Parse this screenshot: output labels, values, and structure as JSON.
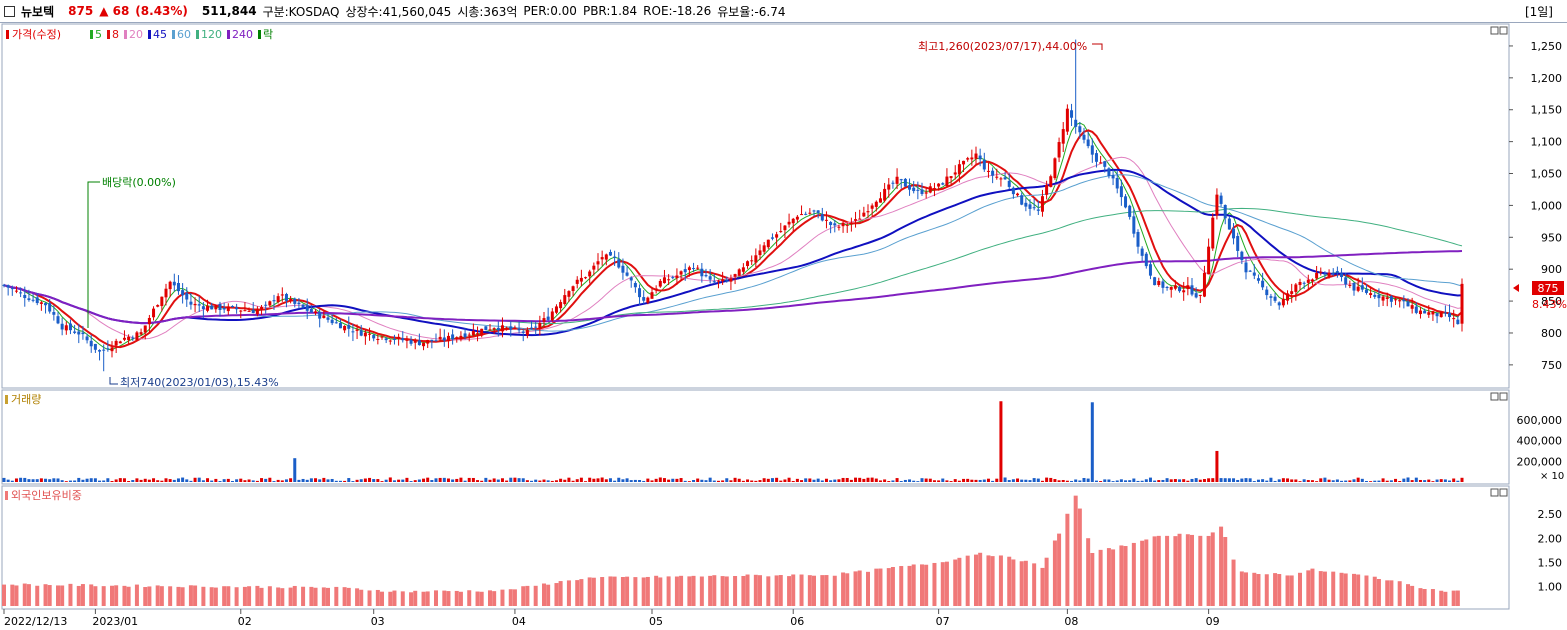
{
  "header": {
    "name": "뉴보텍",
    "price": "875",
    "change": "▲ 68",
    "change_pct": "(8.43%)",
    "volume": "511,844",
    "market": "구분:KOSDAQ",
    "shares": "상장수:41,560,045",
    "cap": "시총:363억",
    "per": "PER:0.00",
    "pbr": "PBR:1.84",
    "roe": "ROE:-18.26",
    "hold": "유보율:-6.74",
    "period": "[1일]"
  },
  "legend": {
    "price_label": "가격(수정)",
    "ma": [
      {
        "label": "5",
        "color": "#22aa22"
      },
      {
        "label": "8",
        "color": "#e01010"
      },
      {
        "label": "20",
        "color": "#e080c0"
      },
      {
        "label": "45",
        "color": "#1010c0"
      },
      {
        "label": "60",
        "color": "#5aa0d0"
      },
      {
        "label": "120",
        "color": "#40b080"
      },
      {
        "label": "240",
        "color": "#8020c0"
      },
      {
        "label": "락",
        "color": "#008000"
      }
    ]
  },
  "annotations": {
    "high": "최고1,260(2023/07/17),44.00%",
    "low": "최저740(2023/01/03),15.43%",
    "ex_div": "배당락(0.00%)"
  },
  "price_tag": {
    "price": "875",
    "pct": "8.43%"
  },
  "panel_titles": {
    "volume": "거래량",
    "foreign": "외국인보유비중",
    "volume_unit": "× 10"
  },
  "colors": {
    "up": "#e00000",
    "down": "#1a5ec8",
    "foreign": "#f07878"
  },
  "chart_data": [
    {
      "type": "candlestick",
      "x_ticks": [
        "2022/12/13",
        "2023/01",
        "02",
        "03",
        "04",
        "05",
        "06",
        "07",
        "08",
        "09"
      ],
      "y_ticks": [
        "750",
        "800",
        "850",
        "900",
        "950",
        "1,000",
        "1,050",
        "1,100",
        "1,150",
        "1,200",
        "1,250"
      ],
      "ylim": [
        720,
        1275
      ],
      "high": {
        "value": 1260,
        "date": "2023/07/17"
      },
      "low": {
        "value": 740,
        "date": "2023/01/03"
      },
      "approx_close_path": [
        [
          0,
          875
        ],
        [
          5,
          858
        ],
        [
          10,
          845
        ],
        [
          14,
          810
        ],
        [
          18,
          800
        ],
        [
          23,
          770
        ],
        [
          28,
          790
        ],
        [
          33,
          800
        ],
        [
          38,
          860
        ],
        [
          40,
          880
        ],
        [
          45,
          845
        ],
        [
          50,
          840
        ],
        [
          55,
          838
        ],
        [
          60,
          835
        ],
        [
          63,
          840
        ],
        [
          66,
          860
        ],
        [
          70,
          845
        ],
        [
          75,
          830
        ],
        [
          80,
          815
        ],
        [
          85,
          802
        ],
        [
          90,
          795
        ],
        [
          95,
          790
        ],
        [
          100,
          785
        ],
        [
          106,
          790
        ],
        [
          112,
          800
        ],
        [
          118,
          810
        ],
        [
          122,
          805
        ],
        [
          126,
          800
        ],
        [
          131,
          825
        ],
        [
          136,
          870
        ],
        [
          141,
          895
        ],
        [
          144,
          920
        ],
        [
          147,
          915
        ],
        [
          150,
          890
        ],
        [
          154,
          850
        ],
        [
          158,
          880
        ],
        [
          162,
          890
        ],
        [
          166,
          905
        ],
        [
          170,
          880
        ],
        [
          174,
          880
        ],
        [
          178,
          900
        ],
        [
          183,
          940
        ],
        [
          187,
          960
        ],
        [
          191,
          985
        ],
        [
          195,
          990
        ],
        [
          200,
          965
        ],
        [
          205,
          975
        ],
        [
          210,
          1010
        ],
        [
          215,
          1040
        ],
        [
          220,
          1020
        ],
        [
          225,
          1030
        ],
        [
          230,
          1060
        ],
        [
          234,
          1080
        ],
        [
          237,
          1050
        ],
        [
          241,
          1040
        ],
        [
          245,
          1005
        ],
        [
          249,
          990
        ],
        [
          253,
          1070
        ],
        [
          256,
          1150
        ],
        [
          259,
          1110
        ],
        [
          262,
          1080
        ],
        [
          266,
          1050
        ],
        [
          270,
          1000
        ],
        [
          274,
          920
        ],
        [
          277,
          880
        ],
        [
          280,
          870
        ],
        [
          285,
          870
        ],
        [
          288,
          855
        ],
        [
          290,
          940
        ],
        [
          292,
          1020
        ],
        [
          295,
          960
        ],
        [
          299,
          900
        ],
        [
          303,
          870
        ],
        [
          307,
          845
        ],
        [
          312,
          880
        ],
        [
          316,
          890
        ],
        [
          320,
          895
        ],
        [
          325,
          870
        ],
        [
          330,
          860
        ],
        [
          336,
          850
        ],
        [
          340,
          835
        ],
        [
          344,
          830
        ],
        [
          348,
          825
        ],
        [
          350,
          815
        ],
        [
          351,
          875
        ]
      ],
      "ma_labels": [
        "5",
        "8",
        "20",
        "45",
        "60",
        "120",
        "240"
      ]
    },
    {
      "type": "bar",
      "name": "거래량",
      "y_ticks": [
        "200,000",
        "400,000",
        "600,000"
      ],
      "unit": "× 10",
      "ylim": [
        0,
        850000
      ],
      "spikes": [
        {
          "index": 240,
          "value": 780000
        },
        {
          "index": 262,
          "value": 770000
        },
        {
          "index": 292,
          "value": 300000
        },
        {
          "index": 70,
          "value": 230000
        }
      ],
      "baseline": 20000
    },
    {
      "type": "bar",
      "name": "외국인보유비중",
      "y_ticks": [
        "1.00",
        "1.50",
        "2.00",
        "2.50"
      ],
      "ylim": [
        0.6,
        3.0
      ],
      "approx_path": [
        [
          0,
          1.05
        ],
        [
          30,
          1.02
        ],
        [
          60,
          1.0
        ],
        [
          80,
          0.98
        ],
        [
          95,
          0.9
        ],
        [
          120,
          0.92
        ],
        [
          140,
          1.18
        ],
        [
          170,
          1.22
        ],
        [
          200,
          1.25
        ],
        [
          225,
          1.5
        ],
        [
          235,
          1.7
        ],
        [
          245,
          1.55
        ],
        [
          250,
          1.4
        ],
        [
          255,
          2.3
        ],
        [
          258,
          2.9
        ],
        [
          262,
          1.7
        ],
        [
          270,
          1.85
        ],
        [
          275,
          2.0
        ],
        [
          285,
          2.1
        ],
        [
          290,
          2.05
        ],
        [
          293,
          2.25
        ],
        [
          297,
          1.3
        ],
        [
          310,
          1.25
        ],
        [
          315,
          1.35
        ],
        [
          330,
          1.2
        ],
        [
          345,
          0.92
        ],
        [
          351,
          0.9
        ]
      ]
    }
  ]
}
